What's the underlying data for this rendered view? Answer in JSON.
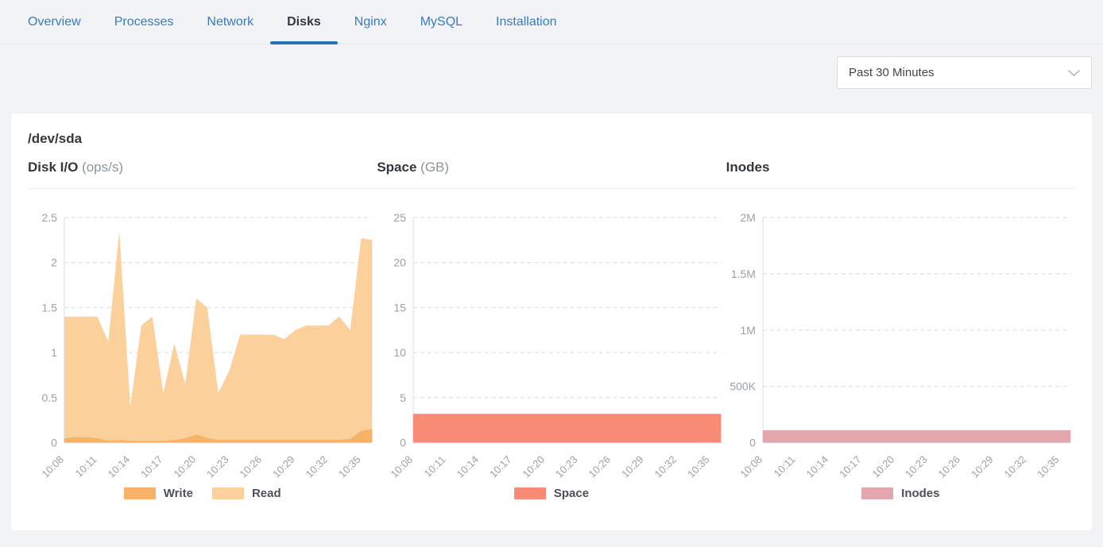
{
  "tabs": {
    "items": [
      {
        "label": "Overview",
        "active": false
      },
      {
        "label": "Processes",
        "active": false
      },
      {
        "label": "Network",
        "active": false
      },
      {
        "label": "Disks",
        "active": true
      },
      {
        "label": "Nginx",
        "active": false
      },
      {
        "label": "MySQL",
        "active": false
      },
      {
        "label": "Installation",
        "active": false
      }
    ]
  },
  "toolbar": {
    "time_range": "Past 30 Minutes"
  },
  "panel": {
    "title": "/dev/sda"
  },
  "colors": {
    "tab_link": "#3a7bbf",
    "active_tab_underline": "#2d6fb3",
    "write_orange": "#f7b267",
    "read_orange": "#fbd09a",
    "space_salmon": "#f98b76",
    "inodes_pink": "#e3a6ae"
  },
  "chart_data": [
    {
      "type": "area",
      "title": "Disk I/O",
      "unit": "(ops/s)",
      "ylim": [
        0,
        2.5
      ],
      "grid": "dashed",
      "legend_position": "bottom",
      "y_ticks": [
        {
          "v": 2.5,
          "label": "2.5"
        },
        {
          "v": 2,
          "label": "2"
        },
        {
          "v": 1.5,
          "label": "1.5"
        },
        {
          "v": 1,
          "label": "1"
        },
        {
          "v": 0.5,
          "label": "0.5"
        },
        {
          "v": 0,
          "label": "0"
        }
      ],
      "x_tick_labels": [
        "10:08",
        "10:11",
        "10:14",
        "10:17",
        "10:20",
        "10:23",
        "10:26",
        "10:29",
        "10:32",
        "10:35"
      ],
      "x_tick_every": 3,
      "x_note": "samples approx. every 1 minute, 10:08 to 10:36",
      "series": [
        {
          "name": "Read",
          "color": "#fbd09a",
          "values": [
            1.4,
            1.4,
            1.4,
            1.4,
            1.12,
            2.35,
            0.4,
            1.3,
            1.4,
            0.55,
            1.1,
            0.65,
            1.6,
            1.5,
            0.55,
            0.8,
            1.2,
            1.2,
            1.2,
            1.2,
            1.15,
            1.25,
            1.3,
            1.3,
            1.3,
            1.4,
            1.25,
            2.27,
            2.25
          ]
        },
        {
          "name": "Write",
          "color": "#f7b267",
          "values": [
            0.05,
            0.06,
            0.06,
            0.05,
            0.02,
            0.03,
            0.02,
            0.02,
            0.02,
            0.02,
            0.03,
            0.05,
            0.09,
            0.05,
            0.03,
            0.03,
            0.03,
            0.03,
            0.03,
            0.03,
            0.03,
            0.03,
            0.03,
            0.03,
            0.03,
            0.03,
            0.04,
            0.13,
            0.15
          ]
        }
      ],
      "legend": [
        {
          "label": "Write",
          "color": "#f7b267"
        },
        {
          "label": "Read",
          "color": "#fbd09a"
        }
      ]
    },
    {
      "type": "area",
      "title": "Space",
      "unit": "(GB)",
      "ylim": [
        0,
        25
      ],
      "grid": "dashed",
      "legend_position": "bottom",
      "y_ticks": [
        {
          "v": 25,
          "label": "25"
        },
        {
          "v": 20,
          "label": "20"
        },
        {
          "v": 15,
          "label": "15"
        },
        {
          "v": 10,
          "label": "10"
        },
        {
          "v": 5,
          "label": "5"
        },
        {
          "v": 0,
          "label": "0"
        }
      ],
      "x_tick_labels": [
        "10:08",
        "10:11",
        "10:14",
        "10:17",
        "10:20",
        "10:23",
        "10:26",
        "10:29",
        "10:32",
        "10:35"
      ],
      "x_tick_every": 3,
      "series": [
        {
          "name": "Space",
          "color": "#f98b76",
          "values": [
            3.2,
            3.2,
            3.2,
            3.2,
            3.2,
            3.2,
            3.2,
            3.2,
            3.2,
            3.2,
            3.2,
            3.2,
            3.2,
            3.2,
            3.2,
            3.2,
            3.2,
            3.2,
            3.2,
            3.2,
            3.2,
            3.2,
            3.2,
            3.2,
            3.2,
            3.2,
            3.2,
            3.2,
            3.2
          ]
        }
      ],
      "legend": [
        {
          "label": "Space",
          "color": "#f98b76"
        }
      ]
    },
    {
      "type": "area",
      "title": "Inodes",
      "unit": "",
      "ylim": [
        0,
        2000000
      ],
      "grid": "dashed",
      "legend_position": "bottom",
      "y_ticks": [
        {
          "v": 2000000,
          "label": "2M"
        },
        {
          "v": 1500000,
          "label": "1.5M"
        },
        {
          "v": 1000000,
          "label": "1M"
        },
        {
          "v": 500000,
          "label": "500K"
        },
        {
          "v": 0,
          "label": "0"
        }
      ],
      "x_tick_labels": [
        "10:08",
        "10:11",
        "10:14",
        "10:17",
        "10:20",
        "10:23",
        "10:26",
        "10:29",
        "10:32",
        "10:35"
      ],
      "x_tick_every": 3,
      "series": [
        {
          "name": "Inodes",
          "color": "#e3a6ae",
          "values": [
            110000,
            110000,
            110000,
            110000,
            110000,
            110000,
            110000,
            110000,
            110000,
            110000,
            110000,
            110000,
            110000,
            110000,
            110000,
            110000,
            110000,
            110000,
            110000,
            110000,
            110000,
            110000,
            110000,
            110000,
            110000,
            110000,
            110000,
            110000,
            110000
          ]
        }
      ],
      "legend": [
        {
          "label": "Inodes",
          "color": "#e3a6ae"
        }
      ]
    }
  ]
}
